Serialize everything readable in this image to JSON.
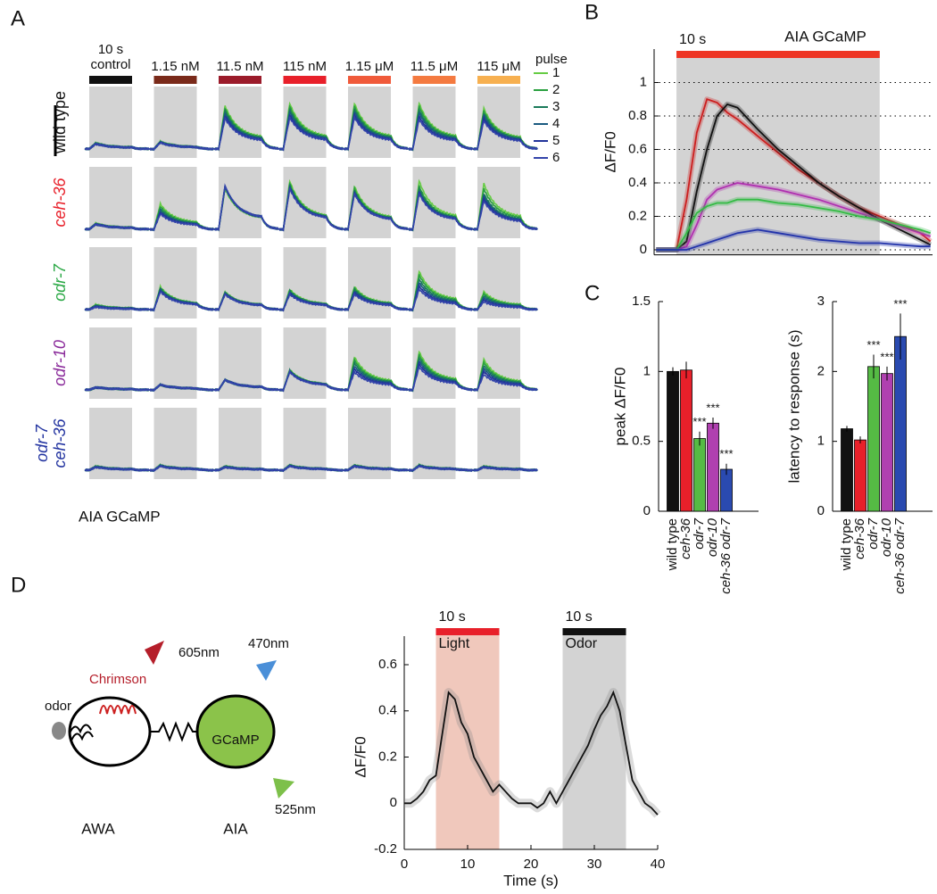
{
  "panel_labels": [
    "A",
    "B",
    "C",
    "D"
  ],
  "diagram": {
    "odor": "odor",
    "chrimson": "Chrimson",
    "red_light": "605nm",
    "blue_light": "470nm",
    "green_light": "525nm",
    "gcamp": "GCaMP",
    "awa": "AWA",
    "aia": "AIA"
  },
  "chart_data": [
    {
      "type": "traces",
      "stim_label": "10 s",
      "caption": "AIA GCaMP",
      "legend_title": "pulse",
      "columns": [
        {
          "label": "control",
          "color": "#111111"
        },
        {
          "label": "1.15 nM",
          "color": "#7a2a1a"
        },
        {
          "label": "11.5 nM",
          "color": "#9b1b2a"
        },
        {
          "label": "115 nM",
          "color": "#e8202a"
        },
        {
          "label": "1.15 μM",
          "color": "#f05a3a"
        },
        {
          "label": "11.5 μM",
          "color": "#f47a40"
        },
        {
          "label": "115 μM",
          "color": "#f7b050"
        }
      ],
      "pulses": [
        {
          "label": 1,
          "color": "#66cc44"
        },
        {
          "label": 2,
          "color": "#2aa040"
        },
        {
          "label": 3,
          "color": "#1a7a5a"
        },
        {
          "label": 4,
          "color": "#1a5a80"
        },
        {
          "label": 5,
          "color": "#22339a"
        },
        {
          "label": 6,
          "color": "#3344aa"
        }
      ],
      "rows": [
        {
          "label": [
            "wild type"
          ],
          "color": "#111111",
          "italic": false,
          "peaks": [
            [
              0.12,
              0.15,
              0.85,
              0.9,
              0.9,
              0.9,
              0.8
            ],
            [
              0.12,
              0.14,
              0.8,
              0.84,
              0.84,
              0.84,
              0.75
            ],
            [
              0.11,
              0.14,
              0.75,
              0.78,
              0.78,
              0.77,
              0.7
            ],
            [
              0.11,
              0.13,
              0.7,
              0.73,
              0.73,
              0.71,
              0.65
            ],
            [
              0.1,
              0.13,
              0.65,
              0.67,
              0.67,
              0.64,
              0.6
            ],
            [
              0.1,
              0.12,
              0.6,
              0.62,
              0.62,
              0.58,
              0.55
            ]
          ]
        },
        {
          "label": [
            "ceh-36"
          ],
          "color": "#e8202a",
          "italic": true,
          "peaks": [
            [
              0.12,
              0.5,
              0.8,
              0.95,
              0.85,
              0.95,
              0.9
            ],
            [
              0.11,
              0.45,
              0.82,
              0.9,
              0.8,
              0.85,
              0.8
            ],
            [
              0.11,
              0.4,
              0.84,
              0.87,
              0.76,
              0.8,
              0.7
            ],
            [
              0.1,
              0.36,
              0.85,
              0.84,
              0.73,
              0.75,
              0.65
            ],
            [
              0.1,
              0.33,
              0.85,
              0.82,
              0.71,
              0.72,
              0.6
            ],
            [
              0.1,
              0.3,
              0.85,
              0.8,
              0.7,
              0.7,
              0.55
            ]
          ]
        },
        {
          "label": [
            "odr-7"
          ],
          "color": "#2aa845",
          "italic": true,
          "peaks": [
            [
              0.1,
              0.45,
              0.35,
              0.4,
              0.45,
              0.75,
              0.35
            ],
            [
              0.09,
              0.43,
              0.34,
              0.38,
              0.42,
              0.68,
              0.31
            ],
            [
              0.08,
              0.41,
              0.33,
              0.36,
              0.39,
              0.6,
              0.27
            ],
            [
              0.07,
              0.39,
              0.32,
              0.34,
              0.36,
              0.53,
              0.23
            ],
            [
              0.06,
              0.37,
              0.31,
              0.32,
              0.33,
              0.46,
              0.19
            ],
            [
              0.05,
              0.35,
              0.3,
              0.3,
              0.3,
              0.4,
              0.15
            ]
          ]
        },
        {
          "label": [
            "odr-10"
          ],
          "color": "#8a2a9a",
          "italic": true,
          "peaks": [
            [
              0.05,
              0.1,
              0.2,
              0.4,
              0.65,
              0.75,
              0.6
            ],
            [
              0.05,
              0.1,
              0.2,
              0.39,
              0.59,
              0.69,
              0.54
            ],
            [
              0.05,
              0.1,
              0.2,
              0.38,
              0.53,
              0.63,
              0.48
            ],
            [
              0.05,
              0.1,
              0.2,
              0.37,
              0.47,
              0.57,
              0.42
            ],
            [
              0.05,
              0.1,
              0.2,
              0.36,
              0.41,
              0.51,
              0.36
            ],
            [
              0.05,
              0.1,
              0.2,
              0.35,
              0.35,
              0.45,
              0.3
            ]
          ]
        },
        {
          "label": [
            "odr-7",
            "ceh-36"
          ],
          "color": "#2233a0",
          "italic": true,
          "peaks": [
            [
              0.08,
              0.1,
              0.08,
              0.1,
              0.1,
              0.1,
              0.08
            ],
            [
              0.08,
              0.1,
              0.08,
              0.1,
              0.1,
              0.1,
              0.08
            ],
            [
              0.07,
              0.09,
              0.07,
              0.09,
              0.09,
              0.09,
              0.07
            ],
            [
              0.07,
              0.09,
              0.07,
              0.09,
              0.09,
              0.09,
              0.07
            ],
            [
              0.06,
              0.08,
              0.06,
              0.08,
              0.08,
              0.08,
              0.06
            ],
            [
              0.06,
              0.08,
              0.06,
              0.08,
              0.08,
              0.08,
              0.06
            ]
          ]
        }
      ]
    },
    {
      "type": "line",
      "title": "AIA GCaMP",
      "ylabel": "ΔF/F0",
      "xlim": [
        -1.1,
        12.6
      ],
      "ylim": [
        -0.03,
        1.2
      ],
      "yticks": [
        0,
        0.2,
        0.4,
        0.6,
        0.8,
        1
      ],
      "grid": "dotted",
      "regions": [
        {
          "start": 0,
          "end": 10,
          "color": "#d3d3d3",
          "bar_color": "#ee3524",
          "duration_label": "10 s"
        }
      ],
      "x": [
        -1,
        0,
        0.5,
        1,
        1.5,
        2,
        2.5,
        3,
        4,
        5,
        6,
        7,
        8,
        9,
        10,
        11,
        12,
        12.5
      ],
      "series": [
        {
          "color": "#cc1f1f",
          "values": [
            0,
            0,
            0.3,
            0.7,
            0.9,
            0.88,
            0.82,
            0.78,
            0.68,
            0.58,
            0.48,
            0.4,
            0.32,
            0.25,
            0.2,
            0.15,
            0.1,
            0.05
          ]
        },
        {
          "color": "#111111",
          "values": [
            0,
            0,
            0.05,
            0.35,
            0.6,
            0.8,
            0.87,
            0.85,
            0.72,
            0.6,
            0.5,
            0.4,
            0.32,
            0.25,
            0.18,
            0.12,
            0.06,
            0.03
          ]
        },
        {
          "color": "#b030b0",
          "values": [
            0,
            0,
            0.02,
            0.15,
            0.3,
            0.36,
            0.38,
            0.4,
            0.38,
            0.36,
            0.33,
            0.3,
            0.26,
            0.22,
            0.18,
            0.14,
            0.1,
            0.08
          ]
        },
        {
          "color": "#33bb44",
          "values": [
            0,
            0,
            0.1,
            0.22,
            0.26,
            0.28,
            0.28,
            0.3,
            0.3,
            0.28,
            0.27,
            0.25,
            0.23,
            0.2,
            0.18,
            0.15,
            0.12,
            0.1
          ]
        },
        {
          "color": "#2233aa",
          "values": [
            0,
            0,
            0,
            0.02,
            0.04,
            0.06,
            0.08,
            0.1,
            0.12,
            0.1,
            0.08,
            0.06,
            0.05,
            0.04,
            0.04,
            0.03,
            0.02,
            0.02
          ]
        }
      ]
    },
    {
      "type": "bar",
      "ylabel": "peak ΔF/F0",
      "ylim": [
        0,
        1.5
      ],
      "yticks": [
        0,
        0.5,
        1,
        1.5
      ],
      "categories": [
        "wild type",
        "ceh-36",
        "odr-7",
        "odr-10",
        "ceh-36 odr-7"
      ],
      "colors": [
        "#111111",
        "#e8202a",
        "#55bb44",
        "#b040b0",
        "#2a4ab0"
      ],
      "values": [
        1,
        1.01,
        0.52,
        0.63,
        0.3
      ],
      "errors": [
        0.03,
        0.06,
        0.05,
        0.04,
        0.04
      ],
      "significance": [
        null,
        null,
        "***",
        "***",
        "***"
      ]
    },
    {
      "type": "bar",
      "ylabel": "latency to response (s)",
      "ylim": [
        0,
        3
      ],
      "yticks": [
        0,
        1,
        2,
        3
      ],
      "categories": [
        "wild type",
        "ceh-36",
        "odr-7",
        "odr-10",
        "ceh-36 odr-7"
      ],
      "colors": [
        "#111111",
        "#e8202a",
        "#55bb44",
        "#b040b0",
        "#2a4ab0"
      ],
      "values": [
        1.18,
        1.02,
        2.07,
        1.97,
        2.5
      ],
      "errors": [
        0.04,
        0.05,
        0.17,
        0.1,
        0.33
      ],
      "significance": [
        null,
        null,
        "***",
        "***",
        "***"
      ]
    },
    {
      "type": "line",
      "ylabel": "ΔF/F0",
      "xlabel": "Time (s)",
      "xlim": [
        0,
        40
      ],
      "ylim": [
        -0.2,
        0.6
      ],
      "xticks": [
        0,
        10,
        20,
        30,
        40
      ],
      "yticks": [
        -0.2,
        0,
        0.2,
        0.4,
        0.6
      ],
      "regions": [
        {
          "start": 5,
          "end": 15,
          "color": "#f0c8bc",
          "bar_color": "#e8202a",
          "duration_label": "10 s",
          "label": "Light"
        },
        {
          "start": 25,
          "end": 35,
          "color": "#d3d3d3",
          "bar_color": "#111111",
          "duration_label": "10 s",
          "label": "Odor"
        }
      ],
      "x": [
        0,
        1,
        2,
        3,
        4,
        5,
        6,
        7,
        8,
        9,
        10,
        11,
        12,
        13,
        14,
        15,
        16,
        17,
        18,
        19,
        20,
        21,
        22,
        23,
        24,
        25,
        26,
        27,
        28,
        29,
        30,
        31,
        32,
        33,
        34,
        35,
        36,
        37,
        38,
        39,
        40
      ],
      "series": [
        {
          "color": "#111111",
          "values": [
            0,
            0,
            0.02,
            0.05,
            0.1,
            0.12,
            0.3,
            0.48,
            0.45,
            0.35,
            0.3,
            0.2,
            0.15,
            0.1,
            0.05,
            0.08,
            0.05,
            0.02,
            0,
            0,
            0,
            -0.02,
            0,
            0.05,
            0,
            0.05,
            0.1,
            0.15,
            0.2,
            0.25,
            0.32,
            0.38,
            0.42,
            0.48,
            0.4,
            0.25,
            0.1,
            0.05,
            0,
            -0.02,
            -0.05
          ]
        }
      ]
    }
  ]
}
